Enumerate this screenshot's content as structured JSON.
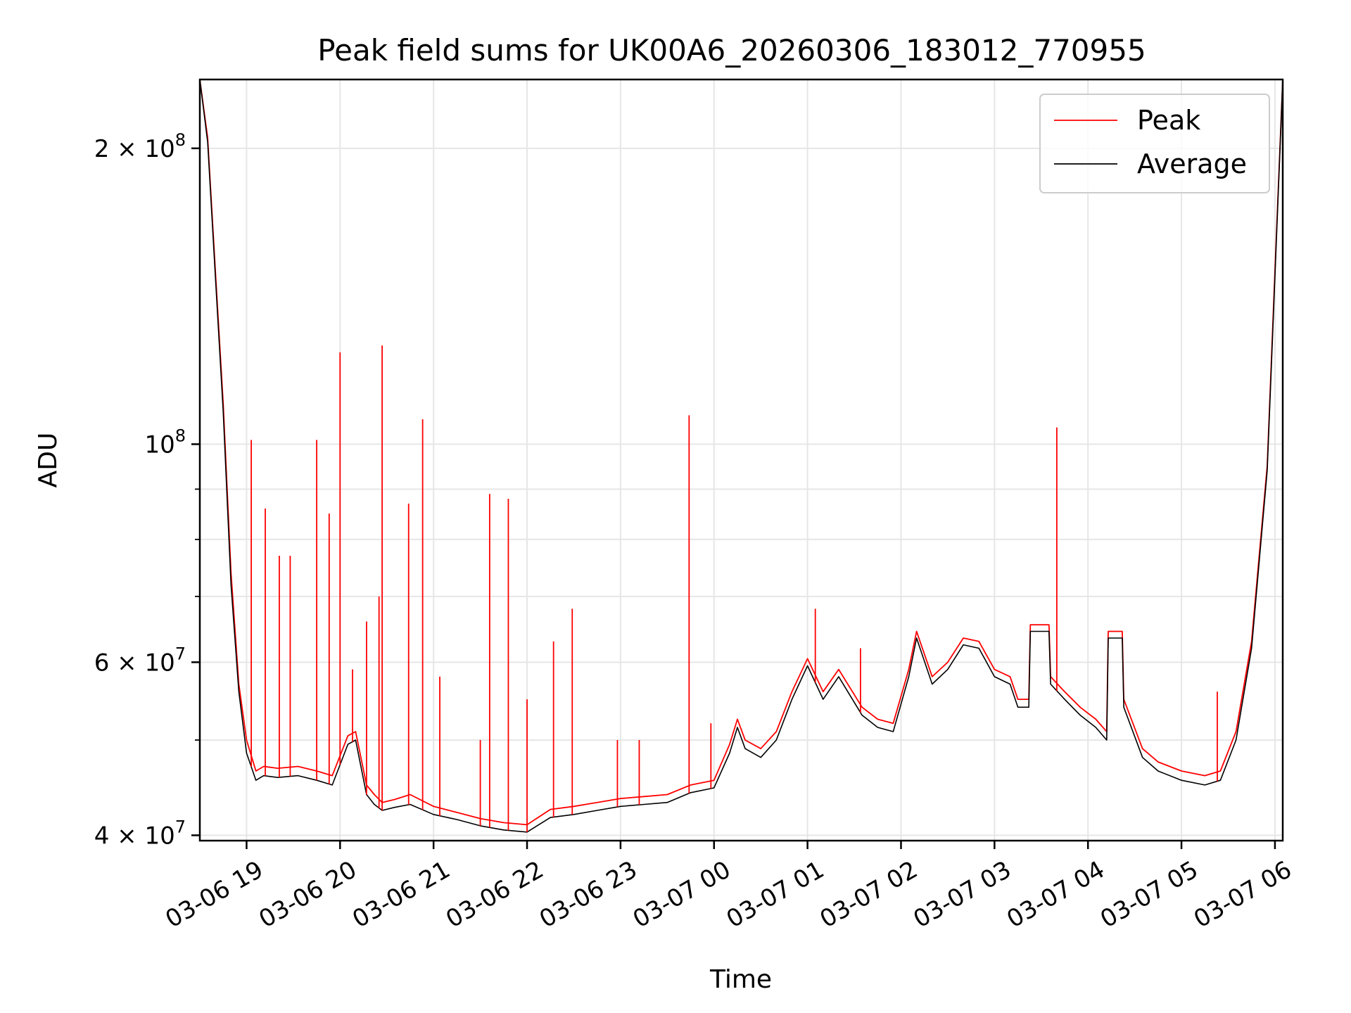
{
  "chart_data": {
    "type": "line",
    "title": "Peak field sums for UK00A6_20260306_183012_770955",
    "xlabel": "Time",
    "ylabel": "ADU",
    "y_scale": "log",
    "xlim": [
      "2026-03-06 18:30",
      "2026-03-07 06:05"
    ],
    "ylim": [
      39500000,
      235000000
    ],
    "grid": true,
    "legend": "top-right",
    "x_ticks": [
      {
        "t": "2026-03-06 19:00",
        "label": "03-06 19"
      },
      {
        "t": "2026-03-06 20:00",
        "label": "03-06 20"
      },
      {
        "t": "2026-03-06 21:00",
        "label": "03-06 21"
      },
      {
        "t": "2026-03-06 22:00",
        "label": "03-06 22"
      },
      {
        "t": "2026-03-06 23:00",
        "label": "03-06 23"
      },
      {
        "t": "2026-03-07 00:00",
        "label": "03-07 00"
      },
      {
        "t": "2026-03-07 01:00",
        "label": "03-07 01"
      },
      {
        "t": "2026-03-07 02:00",
        "label": "03-07 02"
      },
      {
        "t": "2026-03-07 03:00",
        "label": "03-07 03"
      },
      {
        "t": "2026-03-07 04:00",
        "label": "03-07 04"
      },
      {
        "t": "2026-03-07 05:00",
        "label": "03-07 05"
      },
      {
        "t": "2026-03-07 06:00",
        "label": "03-07 06"
      }
    ],
    "y_ticks": [
      {
        "v": 40000000,
        "mant": "4",
        "exp": "7"
      },
      {
        "v": 60000000,
        "mant": "6",
        "exp": "7"
      },
      {
        "v": 100000000,
        "mant": "",
        "exp": "8"
      },
      {
        "v": 200000000,
        "mant": "2",
        "exp": "8"
      }
    ],
    "series": [
      {
        "name": "Peak",
        "color": "#ff0000",
        "x": [
          "2026-03-06 18:30",
          "2026-03-06 18:35",
          "2026-03-06 18:40",
          "2026-03-06 18:45",
          "2026-03-06 18:50",
          "2026-03-06 18:55",
          "2026-03-06 19:00",
          "2026-03-06 19:06",
          "2026-03-06 19:11",
          "2026-03-06 19:20",
          "2026-03-06 19:33",
          "2026-03-06 19:45",
          "2026-03-06 19:55",
          "2026-03-06 20:05",
          "2026-03-06 20:10",
          "2026-03-06 20:17",
          "2026-03-06 20:22",
          "2026-03-06 20:27",
          "2026-03-06 20:35",
          "2026-03-06 20:45",
          "2026-03-06 21:00",
          "2026-03-06 21:15",
          "2026-03-06 21:30",
          "2026-03-06 21:45",
          "2026-03-06 22:00",
          "2026-03-06 22:15",
          "2026-03-06 22:30",
          "2026-03-06 22:45",
          "2026-03-06 23:00",
          "2026-03-06 23:15",
          "2026-03-06 23:30",
          "2026-03-06 23:45",
          "2026-03-07 00:00",
          "2026-03-07 00:10",
          "2026-03-07 00:15",
          "2026-03-07 00:20",
          "2026-03-07 00:30",
          "2026-03-07 00:40",
          "2026-03-07 00:50",
          "2026-03-07 01:00",
          "2026-03-07 01:10",
          "2026-03-07 01:20",
          "2026-03-07 01:35",
          "2026-03-07 01:45",
          "2026-03-07 01:55",
          "2026-03-07 02:05",
          "2026-03-07 02:10",
          "2026-03-07 02:20",
          "2026-03-07 02:30",
          "2026-03-07 02:40",
          "2026-03-07 02:50",
          "2026-03-07 03:00",
          "2026-03-07 03:10",
          "2026-03-07 03:15",
          "2026-03-07 03:22",
          "2026-03-07 03:23",
          "2026-03-07 03:35",
          "2026-03-07 03:36",
          "2026-03-07 03:45",
          "2026-03-07 03:55",
          "2026-03-07 04:05",
          "2026-03-07 04:12",
          "2026-03-07 04:13",
          "2026-03-07 04:22",
          "2026-03-07 04:23",
          "2026-03-07 04:35",
          "2026-03-07 04:45",
          "2026-03-07 05:00",
          "2026-03-07 05:15",
          "2026-03-07 05:25",
          "2026-03-07 05:35",
          "2026-03-07 05:45",
          "2026-03-07 05:55",
          "2026-03-07 06:00",
          "2026-03-07 06:05"
        ],
        "y": [
          235000000,
          205000000,
          150000000,
          110000000,
          74000000,
          57000000,
          50000000,
          46500000,
          47000000,
          46800000,
          47000000,
          46500000,
          46000000,
          50500000,
          51000000,
          45000000,
          44000000,
          43200000,
          43500000,
          44000000,
          42800000,
          42200000,
          41600000,
          41200000,
          41000000,
          42500000,
          42800000,
          43200000,
          43600000,
          43800000,
          44000000,
          45000000,
          45500000,
          49500000,
          52500000,
          50000000,
          49000000,
          51000000,
          56000000,
          60500000,
          56000000,
          59000000,
          54000000,
          52500000,
          52000000,
          59000000,
          64500000,
          58000000,
          60000000,
          63500000,
          63000000,
          59000000,
          58000000,
          55000000,
          55000000,
          65500000,
          65500000,
          58000000,
          56000000,
          54000000,
          52500000,
          51000000,
          64500000,
          64500000,
          55000000,
          49000000,
          47500000,
          46500000,
          46000000,
          46500000,
          51000000,
          63000000,
          95000000,
          150000000,
          235000000
        ],
        "spikes": [
          {
            "x": "2026-03-06 19:03",
            "y": 101000000
          },
          {
            "x": "2026-03-06 19:12",
            "y": 86000000
          },
          {
            "x": "2026-03-06 19:21",
            "y": 77000000
          },
          {
            "x": "2026-03-06 19:28",
            "y": 77000000
          },
          {
            "x": "2026-03-06 19:45",
            "y": 101000000
          },
          {
            "x": "2026-03-06 19:53",
            "y": 85000000
          },
          {
            "x": "2026-03-06 20:00",
            "y": 124000000
          },
          {
            "x": "2026-03-06 20:08",
            "y": 59000000
          },
          {
            "x": "2026-03-06 20:17",
            "y": 66000000
          },
          {
            "x": "2026-03-06 20:25",
            "y": 70000000
          },
          {
            "x": "2026-03-06 20:27",
            "y": 126000000
          },
          {
            "x": "2026-03-06 20:44",
            "y": 87000000
          },
          {
            "x": "2026-03-06 20:53",
            "y": 106000000
          },
          {
            "x": "2026-03-06 21:04",
            "y": 58000000
          },
          {
            "x": "2026-03-06 21:30",
            "y": 50000000
          },
          {
            "x": "2026-03-06 21:36",
            "y": 89000000
          },
          {
            "x": "2026-03-06 21:48",
            "y": 88000000
          },
          {
            "x": "2026-03-06 22:00",
            "y": 55000000
          },
          {
            "x": "2026-03-06 22:17",
            "y": 63000000
          },
          {
            "x": "2026-03-06 22:29",
            "y": 68000000
          },
          {
            "x": "2026-03-06 22:58",
            "y": 50000000
          },
          {
            "x": "2026-03-06 23:12",
            "y": 50000000
          },
          {
            "x": "2026-03-06 23:44",
            "y": 107000000
          },
          {
            "x": "2026-03-06 23:58",
            "y": 52000000
          },
          {
            "x": "2026-03-07 01:05",
            "y": 68000000
          },
          {
            "x": "2026-03-07 01:34",
            "y": 62000000
          },
          {
            "x": "2026-03-07 03:40",
            "y": 104000000
          },
          {
            "x": "2026-03-07 05:23",
            "y": 56000000
          }
        ]
      },
      {
        "name": "Average",
        "color": "#000000",
        "x": [
          "2026-03-06 18:30",
          "2026-03-06 18:35",
          "2026-03-06 18:40",
          "2026-03-06 18:45",
          "2026-03-06 18:50",
          "2026-03-06 18:55",
          "2026-03-06 19:00",
          "2026-03-06 19:06",
          "2026-03-06 19:11",
          "2026-03-06 19:20",
          "2026-03-06 19:33",
          "2026-03-06 19:45",
          "2026-03-06 19:55",
          "2026-03-06 20:05",
          "2026-03-06 20:10",
          "2026-03-06 20:17",
          "2026-03-06 20:22",
          "2026-03-06 20:27",
          "2026-03-06 20:35",
          "2026-03-06 20:45",
          "2026-03-06 21:00",
          "2026-03-06 21:15",
          "2026-03-06 21:30",
          "2026-03-06 21:45",
          "2026-03-06 22:00",
          "2026-03-06 22:15",
          "2026-03-06 22:30",
          "2026-03-06 22:45",
          "2026-03-06 23:00",
          "2026-03-06 23:15",
          "2026-03-06 23:30",
          "2026-03-06 23:45",
          "2026-03-07 00:00",
          "2026-03-07 00:10",
          "2026-03-07 00:15",
          "2026-03-07 00:20",
          "2026-03-07 00:30",
          "2026-03-07 00:40",
          "2026-03-07 00:50",
          "2026-03-07 01:00",
          "2026-03-07 01:10",
          "2026-03-07 01:20",
          "2026-03-07 01:35",
          "2026-03-07 01:45",
          "2026-03-07 01:55",
          "2026-03-07 02:05",
          "2026-03-07 02:10",
          "2026-03-07 02:20",
          "2026-03-07 02:30",
          "2026-03-07 02:40",
          "2026-03-07 02:50",
          "2026-03-07 03:00",
          "2026-03-07 03:10",
          "2026-03-07 03:15",
          "2026-03-07 03:22",
          "2026-03-07 03:23",
          "2026-03-07 03:35",
          "2026-03-07 03:36",
          "2026-03-07 03:45",
          "2026-03-07 03:55",
          "2026-03-07 04:05",
          "2026-03-07 04:12",
          "2026-03-07 04:13",
          "2026-03-07 04:22",
          "2026-03-07 04:23",
          "2026-03-07 04:35",
          "2026-03-07 04:45",
          "2026-03-07 05:00",
          "2026-03-07 05:15",
          "2026-03-07 05:25",
          "2026-03-07 05:35",
          "2026-03-07 05:45",
          "2026-03-07 05:55",
          "2026-03-07 06:00",
          "2026-03-07 06:05"
        ],
        "y": [
          235000000,
          203000000,
          148000000,
          108000000,
          72000000,
          56000000,
          48500000,
          45500000,
          46000000,
          45800000,
          46000000,
          45500000,
          45000000,
          49500000,
          50000000,
          44000000,
          43000000,
          42400000,
          42700000,
          43000000,
          42000000,
          41500000,
          40900000,
          40500000,
          40300000,
          41700000,
          42000000,
          42400000,
          42800000,
          43000000,
          43200000,
          44200000,
          44700000,
          48500000,
          51500000,
          49000000,
          48000000,
          50000000,
          55000000,
          59500000,
          55000000,
          58000000,
          53000000,
          51500000,
          51000000,
          58000000,
          63500000,
          57000000,
          59000000,
          62500000,
          62000000,
          58000000,
          57000000,
          54000000,
          54000000,
          64500000,
          64500000,
          57000000,
          55000000,
          53000000,
          51500000,
          50000000,
          63500000,
          63500000,
          54000000,
          48000000,
          46500000,
          45500000,
          45000000,
          45500000,
          50000000,
          62000000,
          94000000,
          148000000,
          235000000
        ]
      }
    ]
  }
}
